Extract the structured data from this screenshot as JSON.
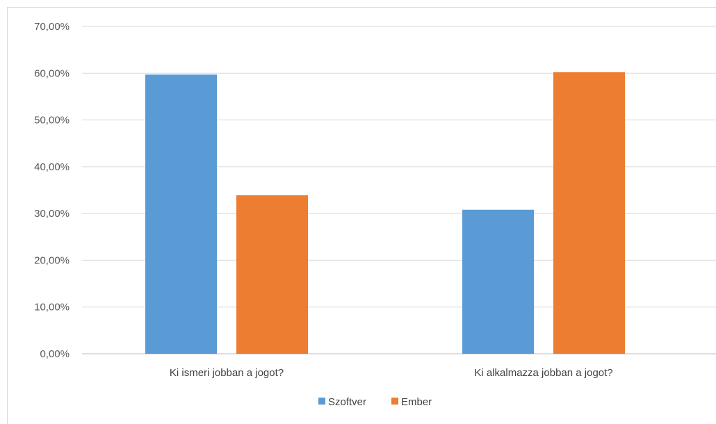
{
  "chart_data": {
    "type": "bar",
    "title": "",
    "xlabel": "",
    "ylabel": "",
    "categories": [
      "Ki ismeri jobban a jogot?",
      "Ki alkalmazza jobban a jogot?"
    ],
    "series": [
      {
        "name": "Szoftver",
        "color": "#5b9bd5",
        "values": [
          59.7,
          30.8
        ]
      },
      {
        "name": "Ember",
        "color": "#ed7d31",
        "values": [
          33.9,
          60.2
        ]
      }
    ],
    "ylim": [
      0,
      70
    ],
    "yticks": [
      "0,00%",
      "10,00%",
      "20,00%",
      "30,00%",
      "40,00%",
      "50,00%",
      "60,00%",
      "70,00%"
    ],
    "grid": true,
    "legend_position": "bottom"
  }
}
